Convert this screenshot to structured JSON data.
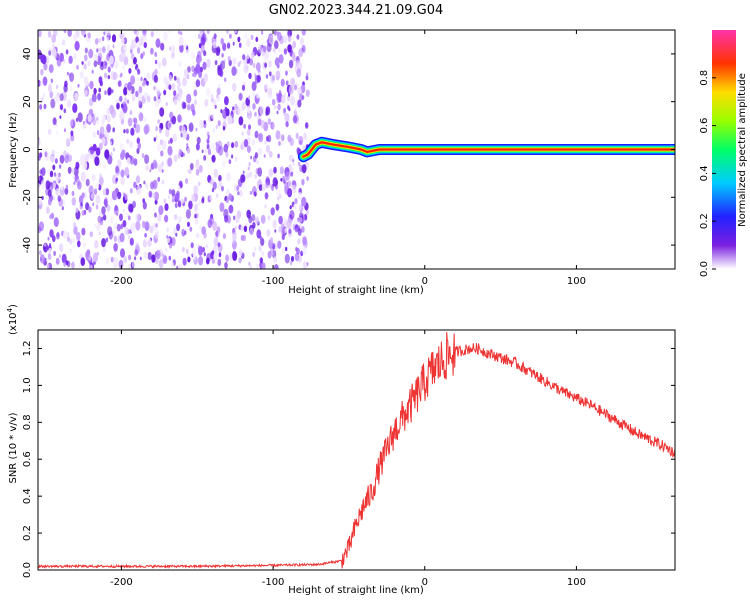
{
  "title": "GN02.2023.344.21.09.G04",
  "chart_data": [
    {
      "type": "heatmap",
      "name": "spectrogram",
      "xlabel": "Height of straight line (km)",
      "ylabel": "Frequency (Hz)",
      "xlim": [
        -255,
        165
      ],
      "ylim": [
        -50,
        50
      ],
      "x_ticks": [
        -200,
        -100,
        0,
        100
      ],
      "x_tick_labels": [
        "-200",
        "-100",
        "0",
        "100"
      ],
      "y_ticks": [
        -40,
        -20,
        0,
        20,
        40
      ],
      "y_tick_labels": [
        "-40",
        "-20",
        "0",
        "20",
        "40"
      ],
      "noise_region_x": [
        -255,
        -77
      ],
      "signal_trace": [
        {
          "x": -80,
          "y": -3
        },
        {
          "x": -77,
          "y": -2
        },
        {
          "x": -72,
          "y": 2
        },
        {
          "x": -68,
          "y": 3
        },
        {
          "x": -60,
          "y": 2
        },
        {
          "x": -50,
          "y": 1
        },
        {
          "x": -42,
          "y": 0
        },
        {
          "x": -38,
          "y": -1
        },
        {
          "x": -30,
          "y": 0
        },
        {
          "x": -20,
          "y": 0
        },
        {
          "x": -10,
          "y": 0
        },
        {
          "x": 0,
          "y": 0
        },
        {
          "x": 10,
          "y": 0
        },
        {
          "x": 50,
          "y": 0
        },
        {
          "x": 100,
          "y": 0
        },
        {
          "x": 165,
          "y": 0
        }
      ],
      "colorbar": {
        "label": "Normalized spectral amplitude",
        "range": [
          0,
          1
        ],
        "ticks": [
          0.0,
          0.2,
          0.4,
          0.6,
          0.8
        ],
        "tick_labels": [
          "0.0",
          "0.2",
          "0.4",
          "0.6",
          "0.8"
        ]
      }
    },
    {
      "type": "line",
      "name": "snr",
      "xlabel": "Height of straight line (km)",
      "ylabel": "SNR (10 * v/v)",
      "yscale_label": "(x10",
      "yscale_exp": "4",
      "yscale_close": ")",
      "xlim": [
        -255,
        165
      ],
      "ylim": [
        0,
        1.3
      ],
      "x_ticks": [
        -200,
        -100,
        0,
        100
      ],
      "x_tick_labels": [
        "-200",
        "-100",
        "0",
        "100"
      ],
      "y_ticks": [
        0.0,
        0.2,
        0.4,
        0.6,
        0.8,
        1.0,
        1.2
      ],
      "y_tick_labels": [
        "0.0",
        "0.2",
        "0.4",
        "0.6",
        "0.8",
        "1.0",
        "1.2"
      ],
      "series": [
        {
          "name": "SNR",
          "color": "#ee3333",
          "points": [
            {
              "x": -255,
              "y": 0.02
            },
            {
              "x": -200,
              "y": 0.02
            },
            {
              "x": -150,
              "y": 0.02
            },
            {
              "x": -100,
              "y": 0.025
            },
            {
              "x": -70,
              "y": 0.03
            },
            {
              "x": -55,
              "y": 0.05
            },
            {
              "x": -50,
              "y": 0.12
            },
            {
              "x": -45,
              "y": 0.25
            },
            {
              "x": -40,
              "y": 0.35
            },
            {
              "x": -35,
              "y": 0.42
            },
            {
              "x": -30,
              "y": 0.55
            },
            {
              "x": -25,
              "y": 0.65
            },
            {
              "x": -20,
              "y": 0.75
            },
            {
              "x": -15,
              "y": 0.82
            },
            {
              "x": -10,
              "y": 0.88
            },
            {
              "x": -5,
              "y": 0.95
            },
            {
              "x": 0,
              "y": 1.02
            },
            {
              "x": 5,
              "y": 1.08
            },
            {
              "x": 10,
              "y": 1.12
            },
            {
              "x": 15,
              "y": 1.16
            },
            {
              "x": 20,
              "y": 1.18
            },
            {
              "x": 25,
              "y": 1.19
            },
            {
              "x": 30,
              "y": 1.2
            },
            {
              "x": 35,
              "y": 1.2
            },
            {
              "x": 40,
              "y": 1.18
            },
            {
              "x": 50,
              "y": 1.15
            },
            {
              "x": 60,
              "y": 1.12
            },
            {
              "x": 70,
              "y": 1.07
            },
            {
              "x": 80,
              "y": 1.02
            },
            {
              "x": 90,
              "y": 0.97
            },
            {
              "x": 100,
              "y": 0.93
            },
            {
              "x": 110,
              "y": 0.89
            },
            {
              "x": 120,
              "y": 0.84
            },
            {
              "x": 130,
              "y": 0.79
            },
            {
              "x": 140,
              "y": 0.74
            },
            {
              "x": 150,
              "y": 0.7
            },
            {
              "x": 160,
              "y": 0.66
            },
            {
              "x": 165,
              "y": 0.63
            }
          ]
        }
      ]
    }
  ]
}
